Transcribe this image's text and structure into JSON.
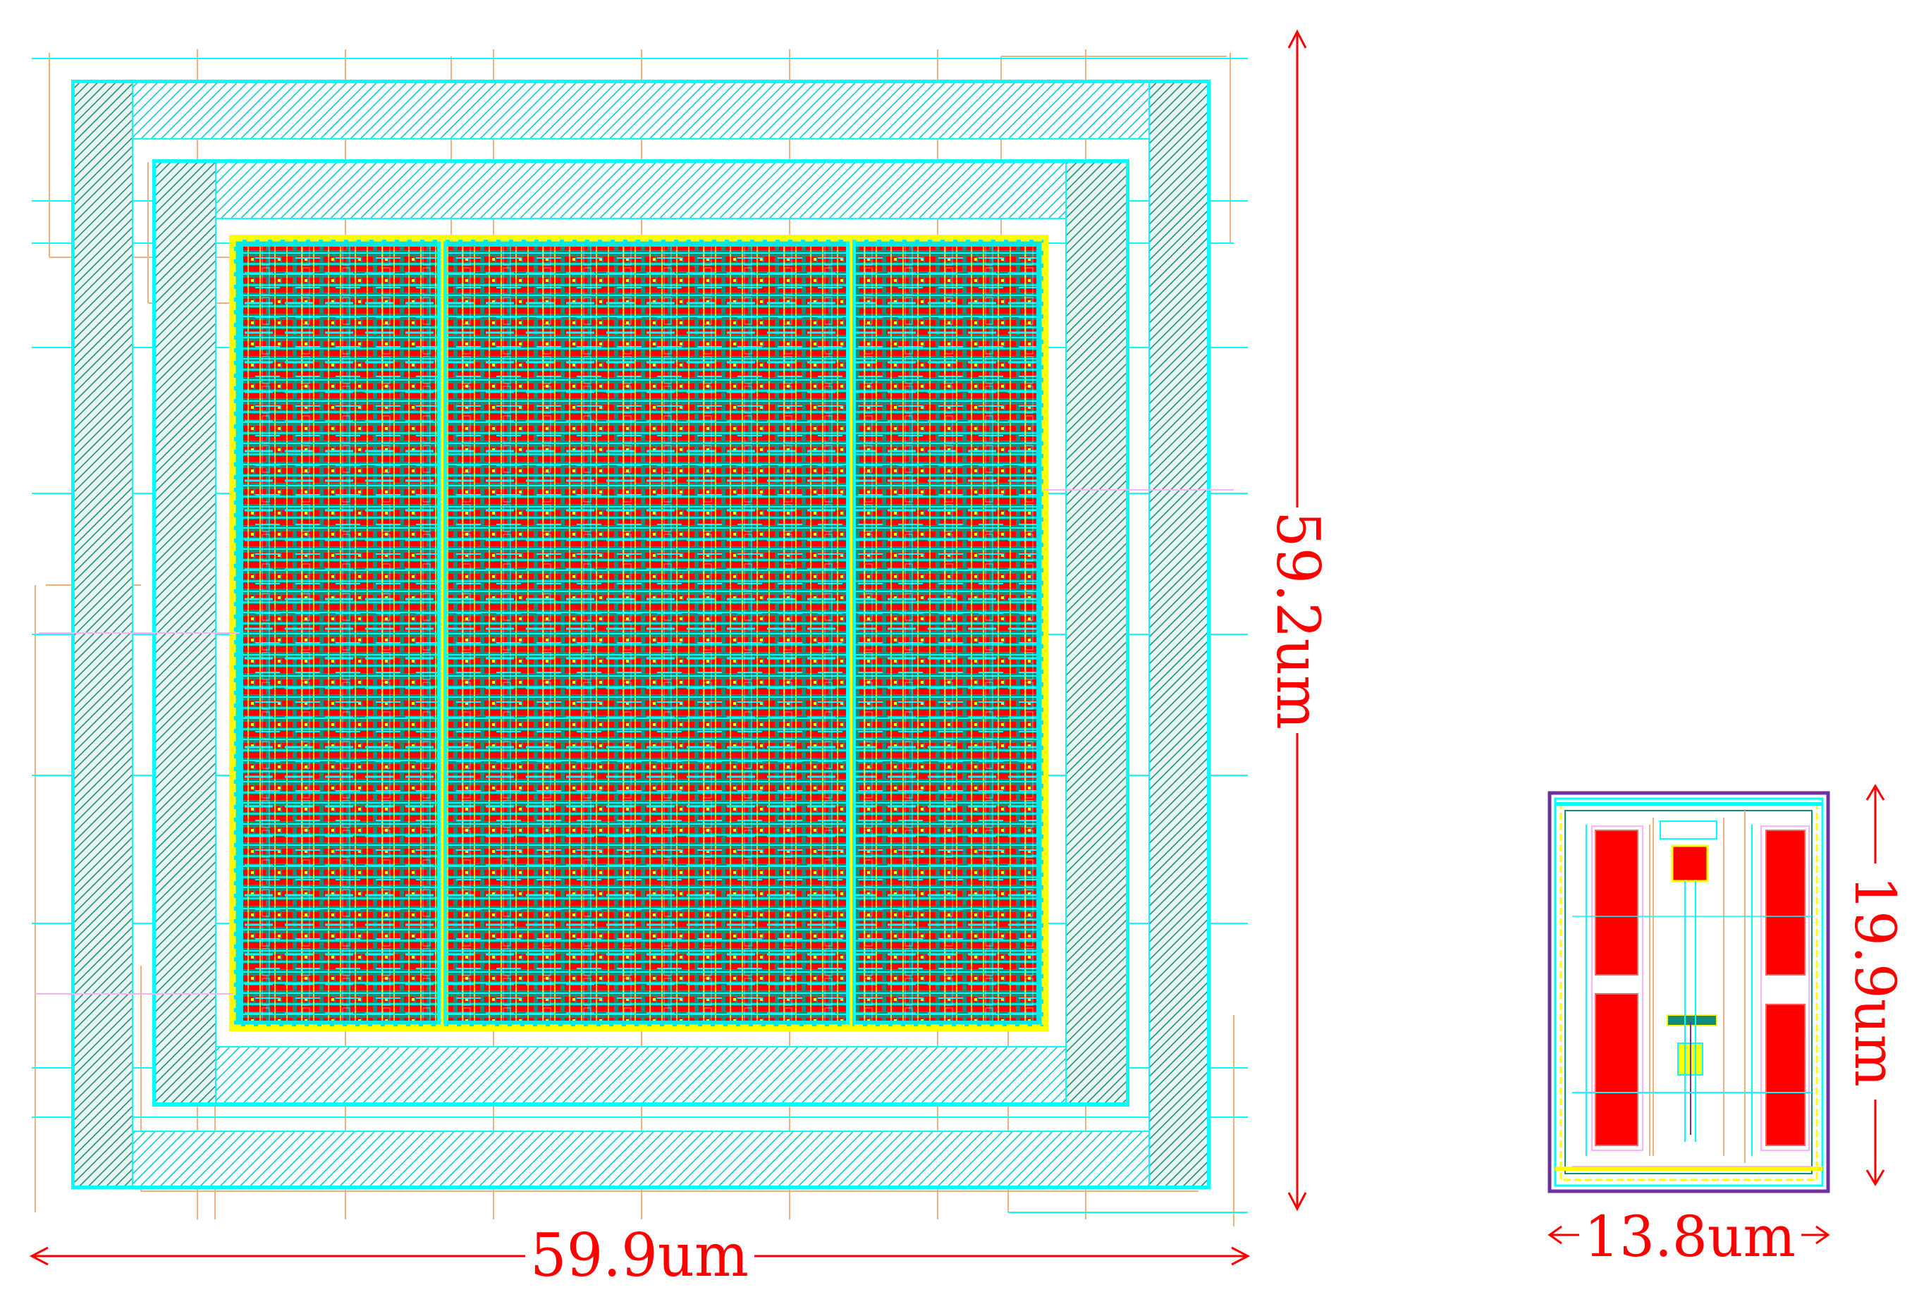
{
  "colors": {
    "cyan": "#00ffff",
    "teal": "#148a78",
    "red": "#ff0000",
    "yellow": "#ffff00",
    "orange": "#f0b080",
    "purple": "#7030a0",
    "pink": "#ffb0ff",
    "dimension": "#ff0000"
  },
  "large_layout": {
    "width_label": "59.9um",
    "height_label": "59.2um"
  },
  "small_layout": {
    "width_label": "13.8um",
    "height_label": "19.9um"
  }
}
